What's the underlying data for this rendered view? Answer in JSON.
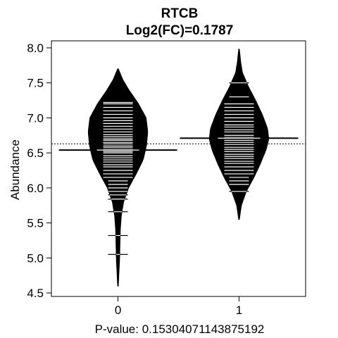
{
  "chart_data": {
    "type": "beanplot",
    "title": "RTCB",
    "subtitle": "Log2(FC)=0.1787",
    "xlabel": "P-value: 0.15304071143875192",
    "ylabel": "Abundance",
    "categories": [
      "0",
      "1"
    ],
    "ylim": [
      4.45,
      8.1
    ],
    "yticks": [
      "4.5",
      "5.0",
      "5.5",
      "6.0",
      "6.5",
      "7.0",
      "7.5",
      "8.0"
    ],
    "overall_mean": 6.63,
    "group_means": [
      6.54,
      6.71
    ],
    "colors": {
      "fill": "#000000",
      "lines": "#ffffff",
      "background": "#ffffff"
    },
    "groups": [
      {
        "name": "0",
        "density": [
          [
            4.6,
            0.01
          ],
          [
            4.8,
            0.03
          ],
          [
            5.0,
            0.05
          ],
          [
            5.2,
            0.06
          ],
          [
            5.4,
            0.07
          ],
          [
            5.6,
            0.1
          ],
          [
            5.8,
            0.17
          ],
          [
            6.0,
            0.32
          ],
          [
            6.2,
            0.55
          ],
          [
            6.4,
            0.76
          ],
          [
            6.6,
            0.86
          ],
          [
            6.8,
            0.9
          ],
          [
            7.0,
            0.85
          ],
          [
            7.2,
            0.62
          ],
          [
            7.4,
            0.33
          ],
          [
            7.55,
            0.14
          ],
          [
            7.7,
            0.01
          ]
        ],
        "values": [
          5.05,
          5.32,
          5.66,
          5.84,
          5.9,
          5.95,
          6.0,
          6.05,
          6.1,
          6.15,
          6.2,
          6.25,
          6.3,
          6.33,
          6.37,
          6.4,
          6.43,
          6.46,
          6.5,
          6.52,
          6.55,
          6.58,
          6.6,
          6.63,
          6.65,
          6.68,
          6.7,
          6.73,
          6.76,
          6.8,
          6.84,
          6.88,
          6.92,
          6.96,
          7.0,
          7.05,
          7.1,
          7.15,
          7.2,
          7.22
        ]
      },
      {
        "name": "1",
        "density": [
          [
            5.55,
            0.01
          ],
          [
            5.75,
            0.07
          ],
          [
            5.95,
            0.22
          ],
          [
            6.15,
            0.45
          ],
          [
            6.35,
            0.65
          ],
          [
            6.55,
            0.82
          ],
          [
            6.7,
            0.9
          ],
          [
            6.85,
            0.86
          ],
          [
            7.05,
            0.7
          ],
          [
            7.25,
            0.5
          ],
          [
            7.45,
            0.28
          ],
          [
            7.65,
            0.1
          ],
          [
            7.8,
            0.05
          ],
          [
            7.98,
            0.01
          ]
        ],
        "values": [
          5.95,
          6.05,
          6.1,
          6.15,
          6.2,
          6.25,
          6.3,
          6.35,
          6.38,
          6.42,
          6.45,
          6.48,
          6.52,
          6.55,
          6.58,
          6.62,
          6.65,
          6.68,
          6.72,
          6.75,
          6.8,
          6.83,
          6.87,
          6.9,
          6.95,
          7.0,
          7.05,
          7.1,
          7.15,
          7.2,
          7.3,
          7.5
        ]
      }
    ]
  }
}
